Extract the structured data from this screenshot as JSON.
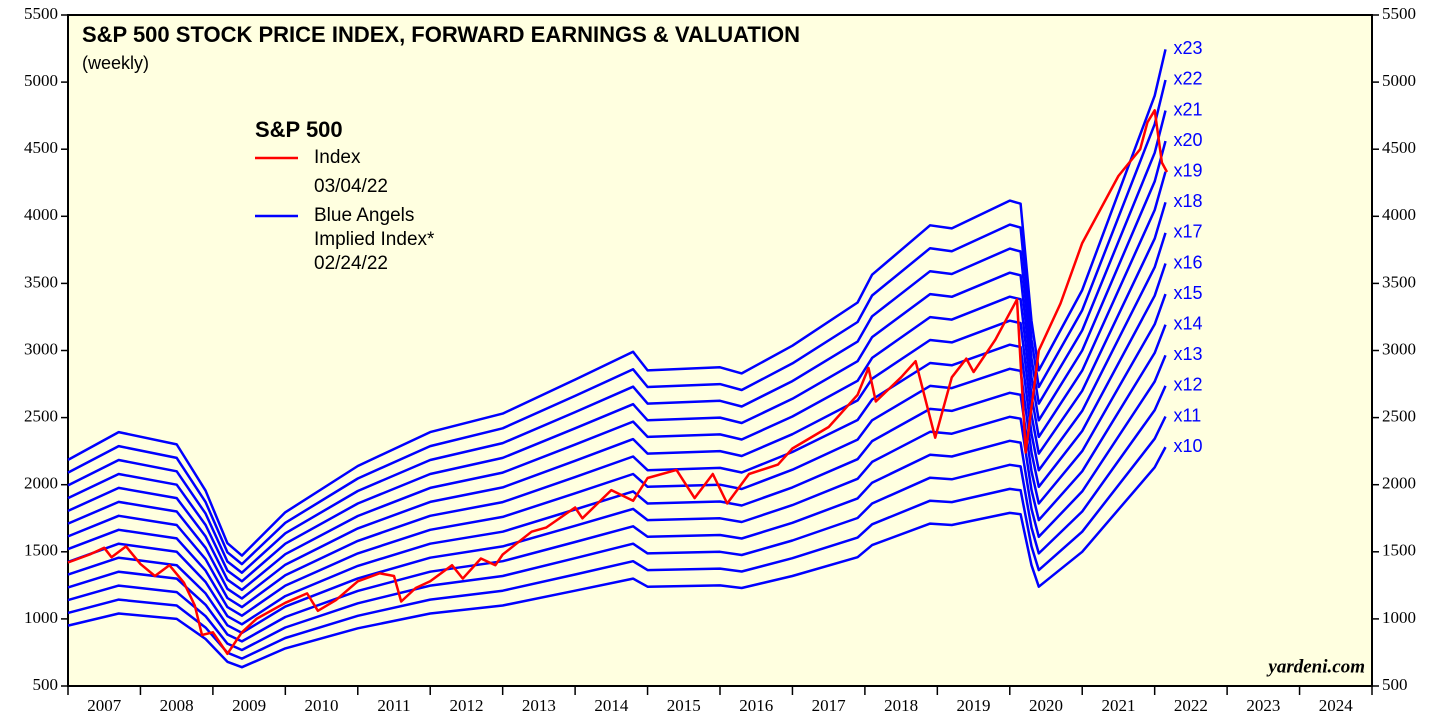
{
  "chart_data": {
    "type": "line",
    "title": "S&P 500 STOCK PRICE INDEX, FORWARD EARNINGS & VALUATION",
    "subtitle": "(weekly)",
    "source": "yardeni.com",
    "legend": {
      "title": "S&P 500",
      "index_date": "03/04/22",
      "blue_label": [
        "Blue Angels",
        "Implied Index*"
      ],
      "blue_date": "02/24/22"
    },
    "xlim": [
      2007,
      2025
    ],
    "xticks": [
      2007,
      2008,
      2009,
      2010,
      2011,
      2012,
      2013,
      2014,
      2015,
      2016,
      2017,
      2018,
      2019,
      2020,
      2021,
      2022,
      2023,
      2024,
      2025
    ],
    "x_labels": [
      "2007",
      "2008",
      "2009",
      "2010",
      "2011",
      "2012",
      "2013",
      "2014",
      "2015",
      "2016",
      "2017",
      "2018",
      "2019",
      "2020",
      "2021",
      "2022",
      "2023",
      "2024"
    ],
    "ylim": [
      500,
      5500
    ],
    "yticks": [
      500,
      1000,
      1500,
      2000,
      2500,
      3000,
      3500,
      4000,
      4500,
      5000,
      5500
    ],
    "index": {
      "name": "Index",
      "color": "#ff0000",
      "x": [
        2007.0,
        2007.3,
        2007.5,
        2007.6,
        2007.8,
        2008.0,
        2008.2,
        2008.4,
        2008.6,
        2008.75,
        2008.85,
        2009.0,
        2009.2,
        2009.4,
        2009.6,
        2010.0,
        2010.3,
        2010.45,
        2010.7,
        2011.0,
        2011.3,
        2011.5,
        2011.6,
        2011.8,
        2012.0,
        2012.3,
        2012.45,
        2012.7,
        2012.9,
        2013.0,
        2013.4,
        2013.6,
        2014.0,
        2014.1,
        2014.5,
        2014.8,
        2015.0,
        2015.4,
        2015.65,
        2015.9,
        2016.1,
        2016.4,
        2016.8,
        2017.0,
        2017.5,
        2017.9,
        2018.05,
        2018.15,
        2018.5,
        2018.7,
        2018.97,
        2019.2,
        2019.4,
        2019.5,
        2019.8,
        2020.1,
        2020.22,
        2020.4,
        2020.7,
        2021.0,
        2021.5,
        2021.8,
        2021.9,
        2022.0,
        2022.1,
        2022.17
      ],
      "values": [
        1420,
        1480,
        1530,
        1460,
        1540,
        1410,
        1320,
        1400,
        1270,
        1100,
        880,
        900,
        740,
        900,
        1000,
        1120,
        1190,
        1060,
        1140,
        1280,
        1340,
        1320,
        1130,
        1230,
        1280,
        1400,
        1300,
        1450,
        1400,
        1480,
        1650,
        1680,
        1830,
        1750,
        1960,
        1880,
        2050,
        2110,
        1900,
        2080,
        1860,
        2080,
        2150,
        2270,
        2430,
        2670,
        2870,
        2620,
        2800,
        2920,
        2350,
        2800,
        2940,
        2840,
        3080,
        3380,
        2240,
        3000,
        3350,
        3800,
        4300,
        4500,
        4700,
        4790,
        4400,
        4330
      ]
    },
    "x": [
      2007.0,
      2007.7,
      2008.5,
      2008.9,
      2009.2,
      2009.4,
      2010.0,
      2011.0,
      2012.0,
      2013.0,
      2014.0,
      2014.8,
      2015.0,
      2016.0,
      2016.3,
      2017.0,
      2017.9,
      2018.1,
      2018.9,
      2019.2,
      2020.0,
      2020.15,
      2020.3,
      2020.4,
      2021.0,
      2022.0,
      2022.15
    ],
    "series": [
      {
        "name": "x10",
        "color": "#0000ff",
        "values": [
          950,
          1040,
          1000,
          850,
          680,
          640,
          780,
          930,
          1040,
          1100,
          1210,
          1300,
          1240,
          1250,
          1230,
          1320,
          1460,
          1550,
          1710,
          1700,
          1790,
          1780,
          1400,
          1240,
          1500,
          2130,
          2280
        ]
      },
      {
        "name": "x11",
        "color": "#0000ff",
        "values": [
          1045,
          1144,
          1100,
          935,
          748,
          704,
          858,
          1023,
          1144,
          1210,
          1331,
          1430,
          1364,
          1375,
          1353,
          1452,
          1606,
          1705,
          1881,
          1870,
          1969,
          1958,
          1540,
          1364,
          1650,
          2343,
          2508
        ]
      },
      {
        "name": "x12",
        "color": "#0000ff",
        "values": [
          1140,
          1248,
          1200,
          1020,
          816,
          768,
          936,
          1116,
          1248,
          1320,
          1452,
          1560,
          1488,
          1500,
          1476,
          1584,
          1752,
          1860,
          2052,
          2040,
          2148,
          2136,
          1680,
          1488,
          1800,
          2556,
          2736
        ]
      },
      {
        "name": "x13",
        "color": "#0000ff",
        "values": [
          1235,
          1352,
          1300,
          1105,
          884,
          832,
          1014,
          1209,
          1352,
          1430,
          1573,
          1690,
          1612,
          1625,
          1599,
          1716,
          1898,
          2015,
          2223,
          2210,
          2327,
          2314,
          1820,
          1612,
          1950,
          2769,
          2964
        ]
      },
      {
        "name": "x14",
        "color": "#0000ff",
        "values": [
          1330,
          1456,
          1400,
          1190,
          952,
          896,
          1092,
          1302,
          1456,
          1540,
          1694,
          1820,
          1736,
          1750,
          1722,
          1848,
          2044,
          2170,
          2394,
          2380,
          2506,
          2492,
          1960,
          1736,
          2100,
          2982,
          3192
        ]
      },
      {
        "name": "x15",
        "color": "#0000ff",
        "values": [
          1425,
          1560,
          1500,
          1275,
          1020,
          960,
          1170,
          1395,
          1560,
          1650,
          1815,
          1950,
          1860,
          1875,
          1845,
          1980,
          2190,
          2325,
          2565,
          2550,
          2685,
          2670,
          2100,
          1860,
          2250,
          3195,
          3420
        ]
      },
      {
        "name": "x16",
        "color": "#0000ff",
        "values": [
          1520,
          1664,
          1600,
          1360,
          1088,
          1024,
          1248,
          1488,
          1664,
          1760,
          1936,
          2080,
          1984,
          2000,
          1968,
          2112,
          2336,
          2480,
          2736,
          2720,
          2864,
          2848,
          2240,
          1984,
          2400,
          3408,
          3648
        ]
      },
      {
        "name": "x17",
        "color": "#0000ff",
        "values": [
          1615,
          1768,
          1700,
          1445,
          1156,
          1088,
          1326,
          1581,
          1768,
          1870,
          2057,
          2210,
          2108,
          2125,
          2091,
          2244,
          2482,
          2635,
          2907,
          2890,
          3043,
          3026,
          2380,
          2108,
          2550,
          3621,
          3876
        ]
      },
      {
        "name": "x18",
        "color": "#0000ff",
        "values": [
          1710,
          1872,
          1800,
          1530,
          1224,
          1152,
          1404,
          1674,
          1872,
          1980,
          2178,
          2340,
          2232,
          2250,
          2214,
          2376,
          2628,
          2790,
          3078,
          3060,
          3222,
          3204,
          2520,
          2232,
          2700,
          3834,
          4104
        ]
      },
      {
        "name": "x19",
        "color": "#0000ff",
        "values": [
          1805,
          1976,
          1900,
          1615,
          1292,
          1216,
          1482,
          1767,
          1976,
          2090,
          2299,
          2470,
          2356,
          2375,
          2337,
          2508,
          2774,
          2945,
          3249,
          3230,
          3401,
          3382,
          2660,
          2356,
          2850,
          4047,
          4332
        ]
      },
      {
        "name": "x20",
        "color": "#0000ff",
        "values": [
          1900,
          2080,
          2000,
          1700,
          1360,
          1280,
          1560,
          1860,
          2080,
          2200,
          2420,
          2600,
          2480,
          2500,
          2460,
          2640,
          2920,
          3100,
          3420,
          3400,
          3580,
          3560,
          2800,
          2480,
          3000,
          4260,
          4560
        ]
      },
      {
        "name": "x21",
        "color": "#0000ff",
        "values": [
          1995,
          2184,
          2100,
          1785,
          1428,
          1344,
          1638,
          1953,
          2184,
          2310,
          2541,
          2730,
          2604,
          2625,
          2583,
          2772,
          3066,
          3255,
          3591,
          3570,
          3759,
          3738,
          2940,
          2604,
          3150,
          4473,
          4788
        ]
      },
      {
        "name": "x22",
        "color": "#0000ff",
        "values": [
          2090,
          2288,
          2200,
          1870,
          1496,
          1408,
          1716,
          2046,
          2288,
          2420,
          2662,
          2860,
          2728,
          2750,
          2706,
          2904,
          3212,
          3410,
          3762,
          3740,
          3938,
          3916,
          3080,
          2728,
          3300,
          4686,
          5016
        ]
      },
      {
        "name": "x23",
        "color": "#0000ff",
        "values": [
          2185,
          2392,
          2300,
          1955,
          1564,
          1472,
          1794,
          2139,
          2392,
          2530,
          2783,
          2990,
          2852,
          2875,
          2829,
          3036,
          3358,
          3565,
          3933,
          3910,
          4117,
          4094,
          3220,
          2852,
          3450,
          4899,
          5244
        ]
      }
    ]
  }
}
